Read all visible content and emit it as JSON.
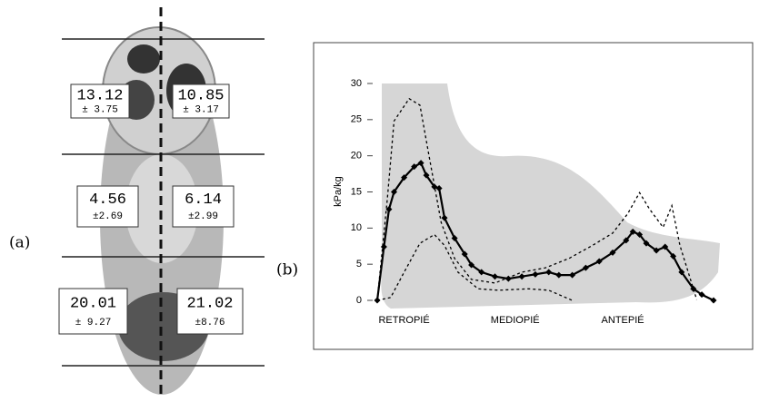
{
  "panel_a": {
    "label": "(a)",
    "regions": [
      {
        "mean": "13.12",
        "sd": "± 3.75"
      },
      {
        "mean": "10.85",
        "sd": "± 3.17"
      },
      {
        "mean": "4.56",
        "sd": "±2.69"
      },
      {
        "mean": "6.14",
        "sd": "±2.99"
      },
      {
        "mean": "20.01",
        "sd": "± 9.27"
      },
      {
        "mean": "21.02",
        "sd": "±8.76"
      }
    ]
  },
  "chart_data": {
    "type": "line",
    "label": "(b)",
    "y_label": "kPa/kg",
    "x_labels": [
      "RETROPIÉ",
      "MEDIOPIÉ",
      "ANTEPIÉ"
    ],
    "xlim": [
      0,
      100
    ],
    "ylim": [
      0,
      30
    ],
    "yticks": [
      0,
      5,
      10,
      15,
      20,
      25,
      30
    ],
    "series": [
      {
        "color": "#000000",
        "style": "solid",
        "markers": true,
        "x": [
          0,
          2,
          3.5,
          5,
          8,
          11,
          13,
          14.6,
          17,
          18.4,
          20,
          23,
          26,
          28,
          31,
          35,
          39,
          43,
          47,
          51,
          54,
          58,
          62,
          66,
          70,
          74,
          76,
          78,
          80,
          83,
          85.6,
          88,
          90.5,
          94,
          96.5,
          100
        ],
        "values": [
          0,
          7.4,
          12.6,
          15,
          17,
          18.5,
          19,
          17.3,
          15.7,
          15.5,
          11.4,
          8.6,
          6.4,
          4.9,
          3.9,
          3.3,
          3,
          3.3,
          3.6,
          3.9,
          3.5,
          3.5,
          4.5,
          5.4,
          6.6,
          8.3,
          9.5,
          9.1,
          7.9,
          6.9,
          7.4,
          6.1,
          3.9,
          1.6,
          0.8,
          0
        ]
      },
      {
        "color": "#000000",
        "style": "dashed",
        "markers": false,
        "x": [
          0,
          3,
          5,
          9.5,
          12.7,
          15.4,
          19,
          23,
          28,
          35,
          43,
          50,
          57,
          64,
          70,
          74.5,
          78,
          81,
          85,
          87.6,
          90,
          95
        ],
        "values": [
          0,
          14,
          24.8,
          27.9,
          27,
          20,
          10.8,
          5.8,
          2.9,
          2.4,
          3.9,
          4.5,
          5.8,
          7.6,
          9.3,
          12,
          14.9,
          12.6,
          10.1,
          13.1,
          7.6,
          0.1
        ]
      },
      {
        "color": "#000000",
        "style": "dashed",
        "markers": false,
        "x": [
          0,
          4,
          8,
          12.7,
          17,
          20,
          24,
          30,
          36,
          45,
          51,
          58
        ],
        "values": [
          0,
          0.4,
          3.9,
          7.9,
          9.1,
          7.6,
          3.9,
          1.6,
          1.4,
          1.6,
          1.4,
          0
        ]
      }
    ]
  }
}
